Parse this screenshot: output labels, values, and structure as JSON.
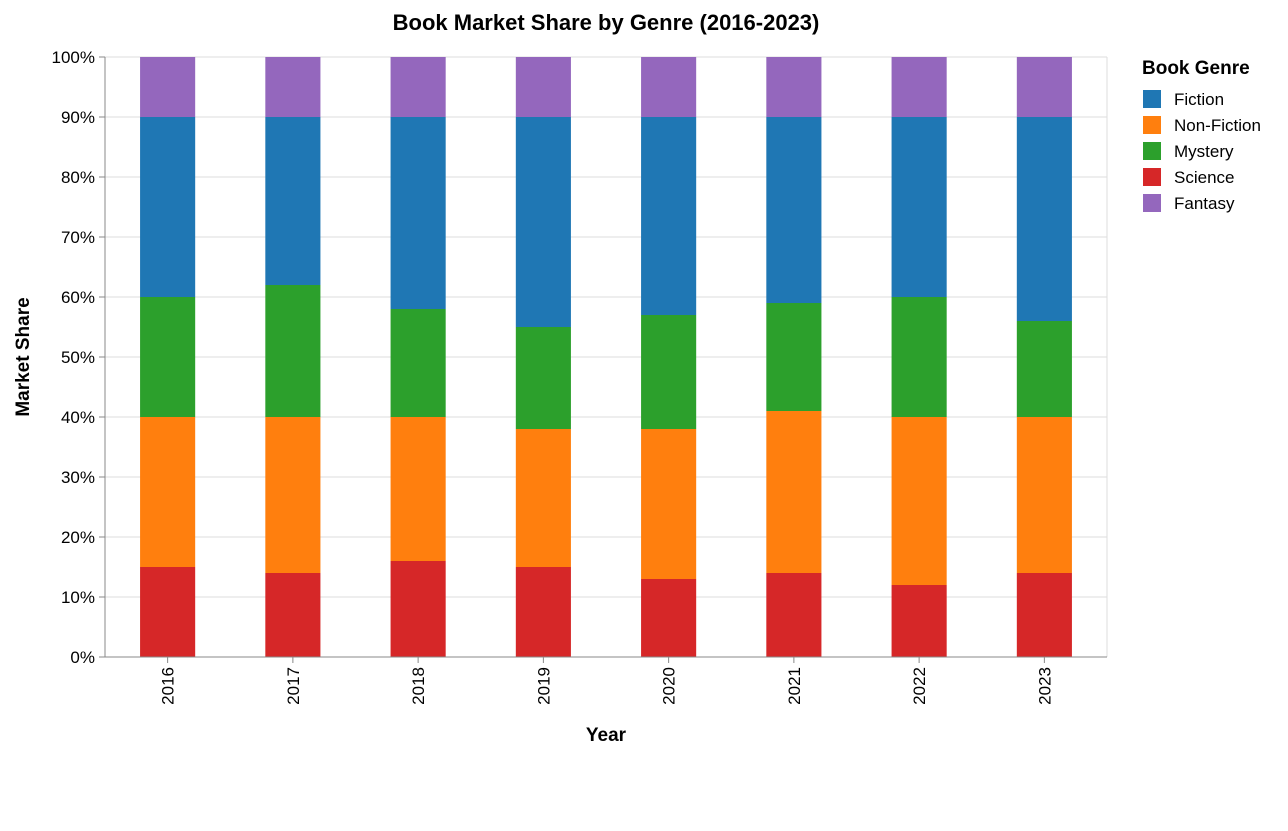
{
  "chart_data": {
    "type": "bar",
    "stacked": true,
    "normalized": true,
    "title": "Book Market Share by Genre (2016-2023)",
    "xlabel": "Year",
    "ylabel": "Market Share",
    "ylim": [
      0,
      100
    ],
    "yticks": [
      "0%",
      "10%",
      "20%",
      "30%",
      "40%",
      "50%",
      "60%",
      "70%",
      "80%",
      "90%",
      "100%"
    ],
    "grid": true,
    "legend": {
      "title": "Book Genre",
      "position": "right"
    },
    "categories": [
      "2016",
      "2017",
      "2018",
      "2019",
      "2020",
      "2021",
      "2022",
      "2023"
    ],
    "series": [
      {
        "name": "Fiction",
        "color": "#1f77b4",
        "values": [
          30,
          28,
          32,
          35,
          33,
          31,
          30,
          34
        ]
      },
      {
        "name": "Non-Fiction",
        "color": "#ff7f0e",
        "values": [
          25,
          26,
          24,
          23,
          25,
          27,
          28,
          26
        ]
      },
      {
        "name": "Mystery",
        "color": "#2ca02c",
        "values": [
          20,
          22,
          18,
          17,
          19,
          18,
          20,
          16
        ]
      },
      {
        "name": "Science",
        "color": "#d62728",
        "values": [
          15,
          14,
          16,
          15,
          13,
          14,
          12,
          14
        ]
      },
      {
        "name": "Fantasy",
        "color": "#9467bd",
        "values": [
          10,
          10,
          10,
          10,
          10,
          10,
          10,
          10
        ]
      }
    ],
    "stack_order_bottom_to_top": [
      "Science",
      "Non-Fiction",
      "Mystery",
      "Fiction",
      "Fantasy"
    ]
  }
}
